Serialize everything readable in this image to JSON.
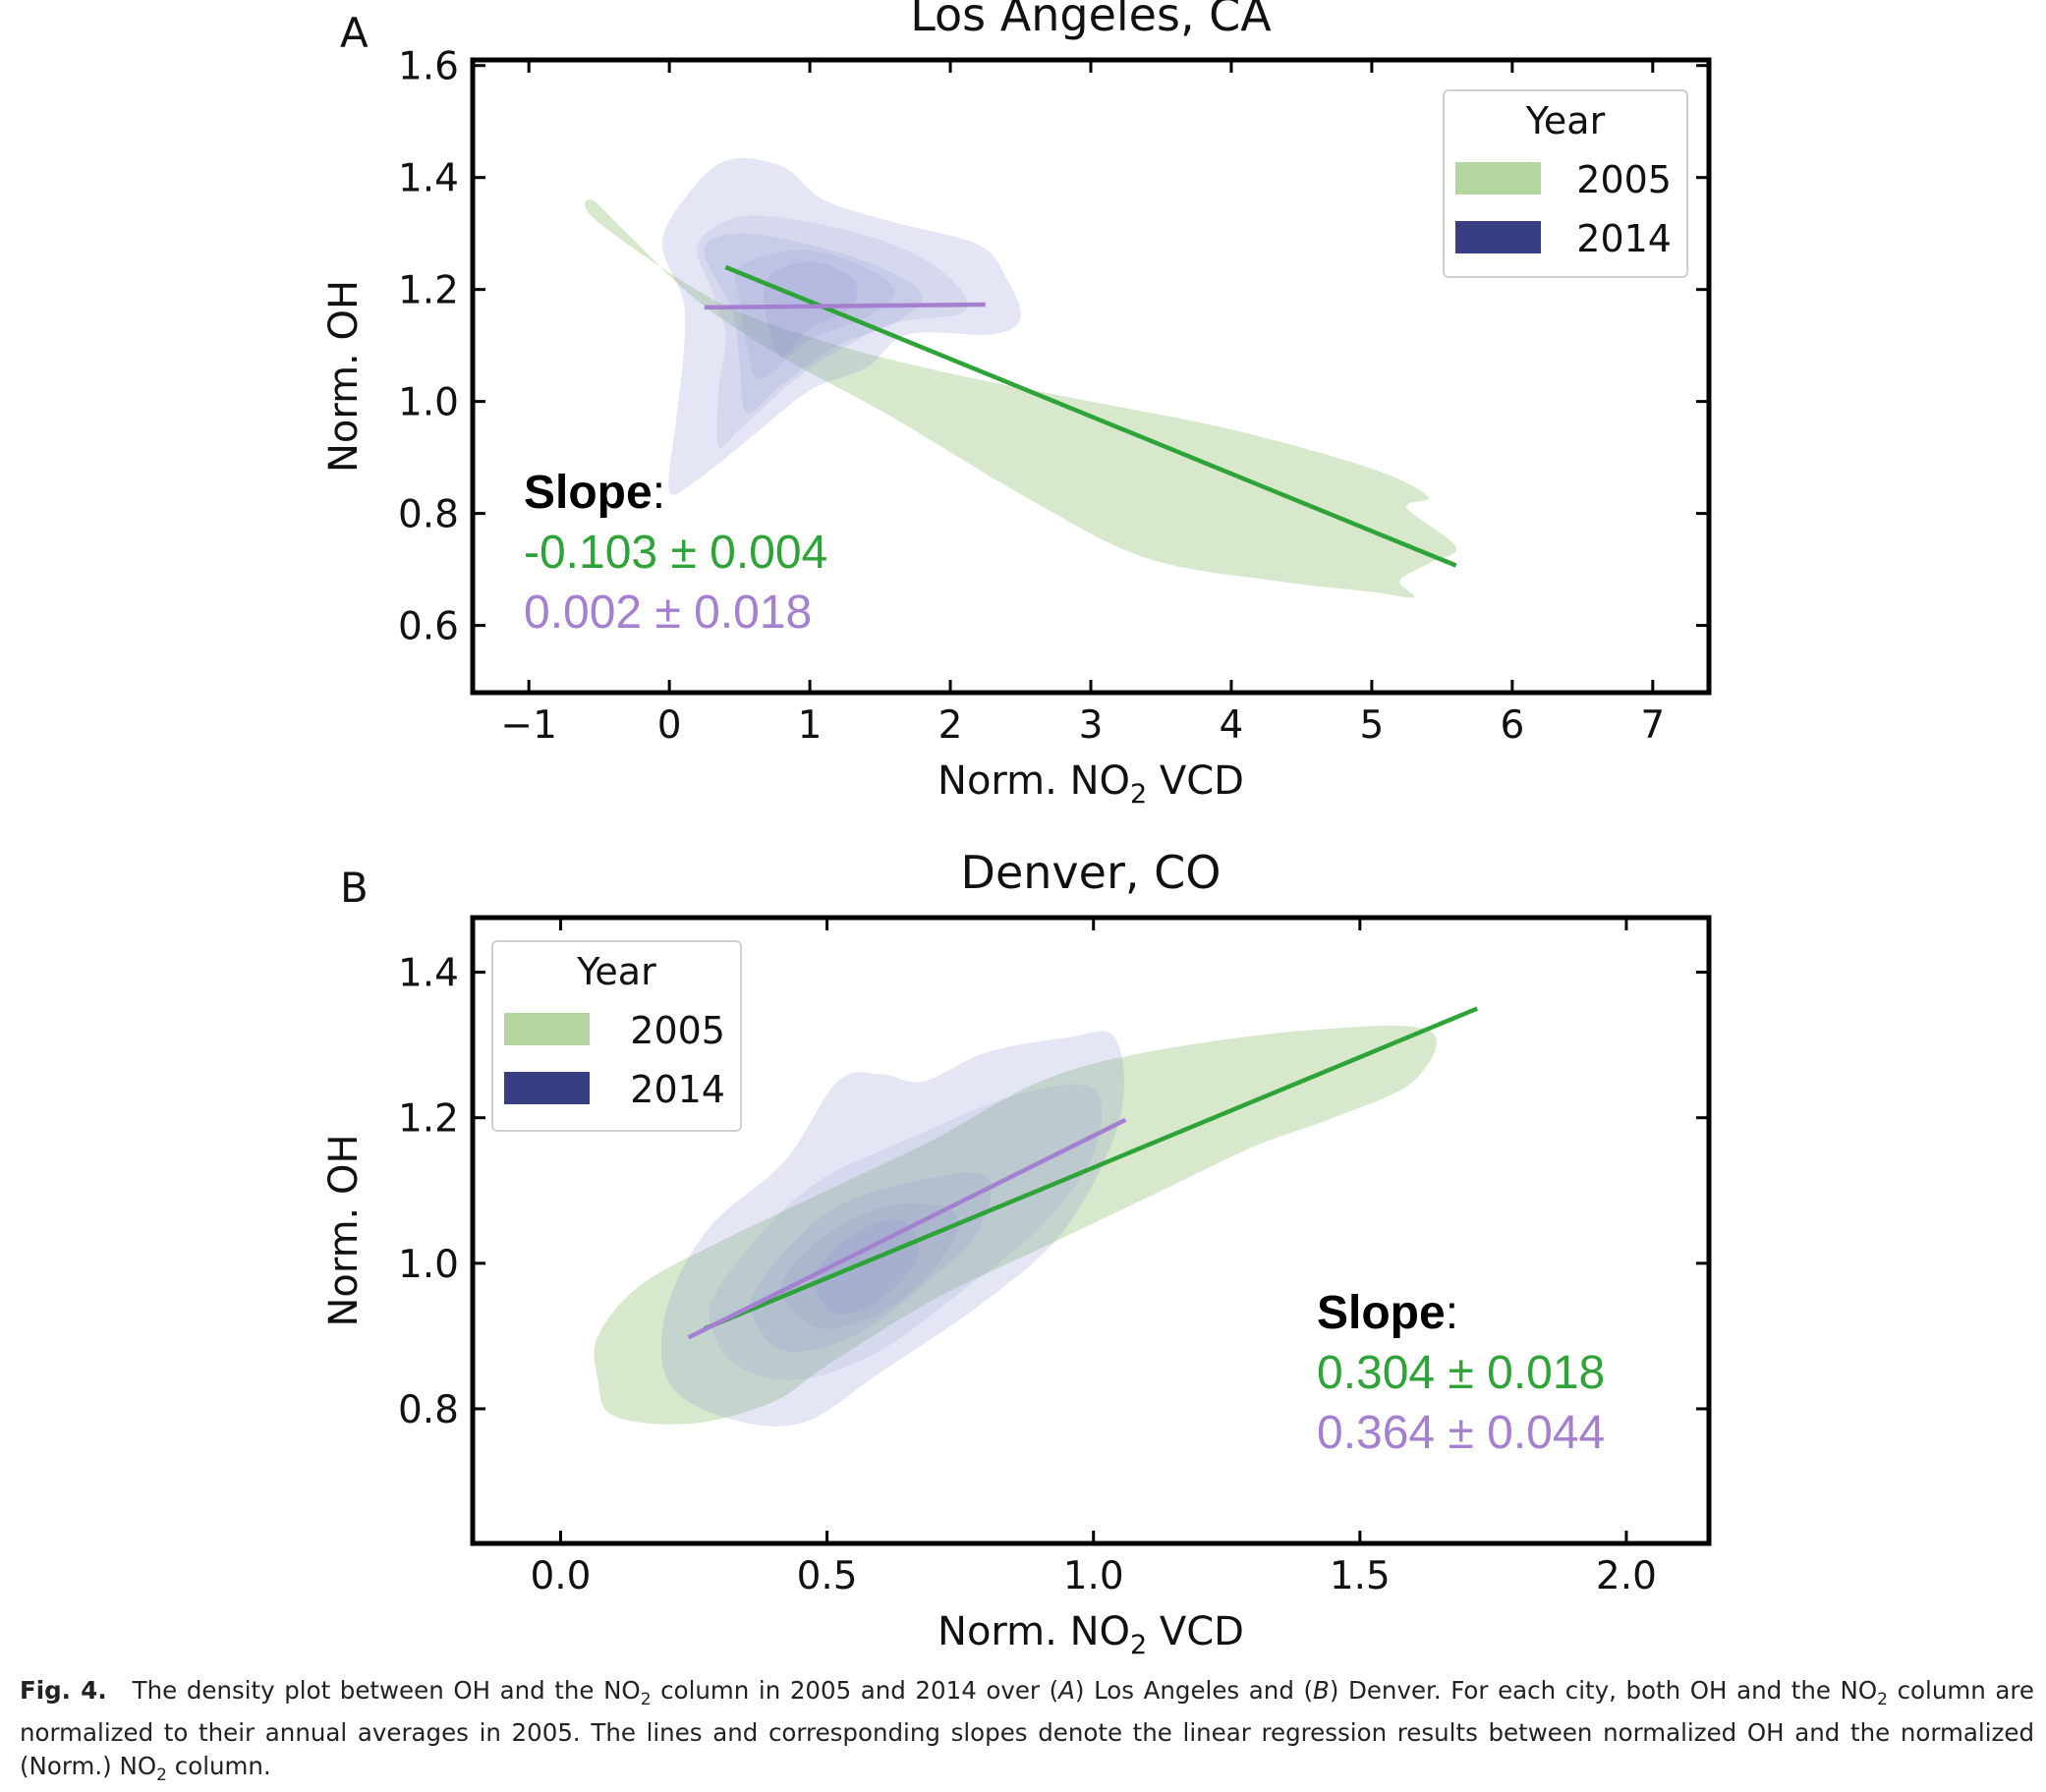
{
  "chart_data": [
    {
      "panel_label": "A",
      "type": "scatter",
      "subtype": "density contour with linear regression lines",
      "title": "Los Angeles, CA",
      "xlabel": "Norm. NO",
      "xlabel_sub": "2",
      "xlabel_suffix": " VCD",
      "ylabel": "Norm. OH",
      "xlim": [
        -1.4,
        7.4
      ],
      "ylim": [
        0.48,
        1.61
      ],
      "xticks": [
        -1,
        0,
        1,
        2,
        3,
        4,
        5,
        6,
        7
      ],
      "xtick_labels": [
        "−1",
        "0",
        "1",
        "2",
        "3",
        "4",
        "5",
        "6",
        "7"
      ],
      "yticks": [
        0.6,
        0.8,
        1.0,
        1.2,
        1.4,
        1.6
      ],
      "ytick_labels": [
        "0.6",
        "0.8",
        "1.0",
        "1.2",
        "1.4",
        "1.6"
      ],
      "grid": false,
      "legend": {
        "title": "Year",
        "position": "top-right",
        "entries": [
          {
            "label": "2005",
            "color": "#b5d6a1"
          },
          {
            "label": "2014",
            "color": "#373f82"
          }
        ]
      },
      "series": [
        {
          "name": "2005",
          "kind": "density",
          "color": "#a8cc90",
          "outline": [
            [
              -0.55,
              1.36
            ],
            [
              -0.55,
              1.33
            ],
            [
              0.0,
              1.23
            ],
            [
              0.5,
              1.16
            ],
            [
              1.2,
              1.1
            ],
            [
              2.0,
              1.05
            ],
            [
              3.0,
              1.0
            ],
            [
              4.0,
              0.95
            ],
            [
              5.0,
              0.88
            ],
            [
              5.4,
              0.83
            ],
            [
              5.25,
              0.81
            ],
            [
              5.6,
              0.74
            ],
            [
              5.4,
              0.71
            ],
            [
              5.2,
              0.68
            ],
            [
              5.3,
              0.65
            ],
            [
              5.0,
              0.66
            ],
            [
              4.3,
              0.68
            ],
            [
              3.4,
              0.72
            ],
            [
              2.6,
              0.82
            ],
            [
              1.6,
              0.97
            ],
            [
              0.8,
              1.08
            ],
            [
              0.2,
              1.18
            ],
            [
              -0.3,
              1.3
            ]
          ]
        },
        {
          "name": "2014",
          "kind": "density",
          "color": "#8a8fd0",
          "levels": [
            [
              [
                0.1,
                1.36
              ],
              [
                0.4,
                1.43
              ],
              [
                0.8,
                1.42
              ],
              [
                1.1,
                1.36
              ],
              [
                1.6,
                1.32
              ],
              [
                2.2,
                1.28
              ],
              [
                2.4,
                1.22
              ],
              [
                2.5,
                1.15
              ],
              [
                2.3,
                1.12
              ],
              [
                1.7,
                1.12
              ],
              [
                1.4,
                1.06
              ],
              [
                1.0,
                1.02
              ],
              [
                0.6,
                0.94
              ],
              [
                0.2,
                0.86
              ],
              [
                0.0,
                0.84
              ],
              [
                0.05,
                0.97
              ],
              [
                0.1,
                1.08
              ],
              [
                0.1,
                1.18
              ],
              [
                -0.05,
                1.28
              ]
            ],
            [
              [
                0.2,
                1.28
              ],
              [
                0.5,
                1.33
              ],
              [
                1.0,
                1.32
              ],
              [
                1.6,
                1.28
              ],
              [
                2.0,
                1.22
              ],
              [
                2.1,
                1.16
              ],
              [
                1.6,
                1.14
              ],
              [
                1.2,
                1.09
              ],
              [
                0.9,
                1.04
              ],
              [
                0.5,
                0.95
              ],
              [
                0.35,
                0.92
              ],
              [
                0.35,
                1.02
              ],
              [
                0.4,
                1.12
              ],
              [
                0.3,
                1.2
              ]
            ],
            [
              [
                0.25,
                1.27
              ],
              [
                0.5,
                1.3
              ],
              [
                1.0,
                1.28
              ],
              [
                1.5,
                1.24
              ],
              [
                1.8,
                1.19
              ],
              [
                1.6,
                1.14
              ],
              [
                1.2,
                1.1
              ],
              [
                0.8,
                1.03
              ],
              [
                0.55,
                0.98
              ],
              [
                0.5,
                1.07
              ],
              [
                0.45,
                1.16
              ]
            ],
            [
              [
                0.5,
                1.24
              ],
              [
                0.9,
                1.27
              ],
              [
                1.3,
                1.25
              ],
              [
                1.6,
                1.2
              ],
              [
                1.4,
                1.15
              ],
              [
                1.0,
                1.11
              ],
              [
                0.65,
                1.04
              ],
              [
                0.55,
                1.1
              ],
              [
                0.5,
                1.18
              ]
            ],
            [
              [
                0.7,
                1.22
              ],
              [
                1.0,
                1.25
              ],
              [
                1.3,
                1.22
              ],
              [
                1.3,
                1.17
              ],
              [
                1.0,
                1.13
              ],
              [
                0.8,
                1.08
              ],
              [
                0.7,
                1.14
              ]
            ]
          ]
        },
        {
          "name": "2005",
          "kind": "regression",
          "color": "#2ea338",
          "x": [
            0.4,
            5.6
          ],
          "y": [
            1.24,
            0.707
          ]
        },
        {
          "name": "2014",
          "kind": "regression",
          "color": "#a57fd0",
          "x": [
            0.25,
            2.25
          ],
          "y": [
            1.168,
            1.173
          ]
        }
      ],
      "annotation": {
        "heading": "Slope",
        "heading_suffix": ":",
        "lines": [
          {
            "text": "-0.103 ± 0.004",
            "color": "#2ea338"
          },
          {
            "text": "0.002 ± 0.018",
            "color": "#a57fd0"
          }
        ],
        "position": "bottom-left"
      }
    },
    {
      "panel_label": "B",
      "type": "scatter",
      "subtype": "density contour with linear regression lines",
      "title": "Denver, CO",
      "xlabel": "Norm. NO",
      "xlabel_sub": "2",
      "xlabel_suffix": " VCD",
      "ylabel": "Norm. OH",
      "xlim": [
        -0.165,
        2.155
      ],
      "ylim": [
        0.615,
        1.475
      ],
      "xticks": [
        0.0,
        0.5,
        1.0,
        1.5,
        2.0
      ],
      "xtick_labels": [
        "0.0",
        "0.5",
        "1.0",
        "1.5",
        "2.0"
      ],
      "yticks": [
        0.8,
        1.0,
        1.2,
        1.4
      ],
      "ytick_labels": [
        "0.8",
        "1.0",
        "1.2",
        "1.4"
      ],
      "grid": false,
      "legend": {
        "title": "Year",
        "position": "top-left",
        "entries": [
          {
            "label": "2005",
            "color": "#b5d6a1"
          },
          {
            "label": "2014",
            "color": "#373f82"
          }
        ]
      },
      "series": [
        {
          "name": "2005",
          "kind": "density",
          "color": "#a8cc90",
          "outline": [
            [
              0.07,
              0.9
            ],
            [
              0.15,
              0.97
            ],
            [
              0.3,
              1.03
            ],
            [
              0.5,
              1.1
            ],
            [
              0.7,
              1.17
            ],
            [
              0.9,
              1.25
            ],
            [
              1.1,
              1.29
            ],
            [
              1.4,
              1.32
            ],
            [
              1.63,
              1.32
            ],
            [
              1.6,
              1.25
            ],
            [
              1.45,
              1.2
            ],
            [
              1.3,
              1.16
            ],
            [
              1.1,
              1.09
            ],
            [
              0.9,
              1.02
            ],
            [
              0.7,
              0.95
            ],
            [
              0.5,
              0.86
            ],
            [
              0.4,
              0.81
            ],
            [
              0.25,
              0.78
            ],
            [
              0.1,
              0.79
            ],
            [
              0.07,
              0.84
            ]
          ]
        },
        {
          "name": "2014",
          "kind": "density",
          "color": "#8a8fd0",
          "levels": [
            [
              [
                0.28,
                1.05
              ],
              [
                0.42,
                1.14
              ],
              [
                0.52,
                1.25
              ],
              [
                0.6,
                1.26
              ],
              [
                0.68,
                1.25
              ],
              [
                0.8,
                1.29
              ],
              [
                0.95,
                1.31
              ],
              [
                1.04,
                1.31
              ],
              [
                1.05,
                1.2
              ],
              [
                0.95,
                1.05
              ],
              [
                0.8,
                0.95
              ],
              [
                0.6,
                0.85
              ],
              [
                0.45,
                0.78
              ],
              [
                0.3,
                0.79
              ],
              [
                0.2,
                0.84
              ],
              [
                0.2,
                0.94
              ]
            ],
            [
              [
                0.3,
                0.97
              ],
              [
                0.4,
                1.06
              ],
              [
                0.5,
                1.12
              ],
              [
                0.65,
                1.17
              ],
              [
                0.85,
                1.23
              ],
              [
                1.0,
                1.24
              ],
              [
                1.0,
                1.15
              ],
              [
                0.9,
                1.05
              ],
              [
                0.75,
                0.96
              ],
              [
                0.6,
                0.88
              ],
              [
                0.45,
                0.84
              ],
              [
                0.33,
                0.86
              ],
              [
                0.28,
                0.92
              ]
            ],
            [
              [
                0.38,
                0.98
              ],
              [
                0.5,
                1.07
              ],
              [
                0.65,
                1.11
              ],
              [
                0.8,
                1.12
              ],
              [
                0.78,
                1.04
              ],
              [
                0.68,
                0.97
              ],
              [
                0.55,
                0.9
              ],
              [
                0.42,
                0.88
              ],
              [
                0.36,
                0.93
              ]
            ],
            [
              [
                0.42,
                0.98
              ],
              [
                0.5,
                1.04
              ],
              [
                0.62,
                1.08
              ],
              [
                0.74,
                1.07
              ],
              [
                0.72,
                1.01
              ],
              [
                0.62,
                0.94
              ],
              [
                0.5,
                0.91
              ],
              [
                0.43,
                0.94
              ]
            ],
            [
              [
                0.48,
                0.99
              ],
              [
                0.55,
                1.04
              ],
              [
                0.64,
                1.06
              ],
              [
                0.67,
                1.01
              ],
              [
                0.6,
                0.95
              ],
              [
                0.52,
                0.93
              ],
              [
                0.48,
                0.96
              ]
            ]
          ]
        },
        {
          "name": "2005",
          "kind": "regression",
          "color": "#2ea338",
          "x": [
            0.27,
            1.72
          ],
          "y": [
            0.91,
            1.35
          ]
        },
        {
          "name": "2014",
          "kind": "regression",
          "color": "#a57fd0",
          "x": [
            0.24,
            1.06
          ],
          "y": [
            0.898,
            1.197
          ]
        }
      ],
      "annotation": {
        "heading": "Slope",
        "heading_suffix": ":",
        "lines": [
          {
            "text": "0.304 ± 0.018",
            "color": "#2ea338"
          },
          {
            "text": "0.364 ± 0.044",
            "color": "#a57fd0"
          }
        ],
        "position": "bottom-right"
      }
    }
  ],
  "caption": {
    "label": "Fig. 4.",
    "parts": [
      "The density plot between OH and the NO",
      "2",
      " column in 2005 and 2014 over (",
      "A",
      ") Los Angeles and (",
      "B",
      ") Denver. For each city, both OH and the NO",
      "2",
      " column are normalized to their annual averages in 2005. The lines and corresponding slopes denote the linear regression results between normalized OH and the normalized (Norm.) NO",
      "2",
      " column."
    ]
  },
  "colors": {
    "green_2005": "#2ea338",
    "purple_2014": "#a57fd0",
    "legend_2005": "#b5d6a1",
    "legend_2014": "#373f82"
  }
}
